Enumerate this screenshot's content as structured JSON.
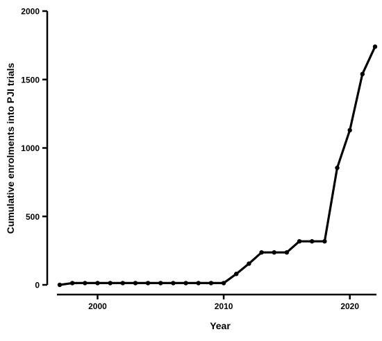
{
  "chart_data": {
    "type": "line",
    "title": "",
    "xlabel": "Year",
    "ylabel": "Cumulative enrolments into PJI trials",
    "xlim": [
      1997,
      2022
    ],
    "ylim": [
      0,
      2000
    ],
    "x_ticks": [
      2000,
      2010,
      2020
    ],
    "y_ticks": [
      0,
      500,
      1000,
      1500,
      2000
    ],
    "grid": false,
    "legend": "none",
    "colors": {
      "line": "#000000",
      "axis": "#000000"
    },
    "series": [
      {
        "x": [
          1997,
          1998,
          1999,
          2000,
          2001,
          2002,
          2003,
          2004,
          2005,
          2006,
          2007,
          2008,
          2009,
          2010,
          2011,
          2012,
          2013,
          2014,
          2015,
          2016,
          2017,
          2018,
          2019,
          2020,
          2021,
          2022
        ],
        "values": [
          0,
          13,
          13,
          13,
          13,
          13,
          13,
          13,
          13,
          13,
          13,
          13,
          13,
          13,
          80,
          155,
          237,
          237,
          237,
          318,
          318,
          318,
          855,
          1130,
          1540,
          1740
        ]
      }
    ]
  }
}
